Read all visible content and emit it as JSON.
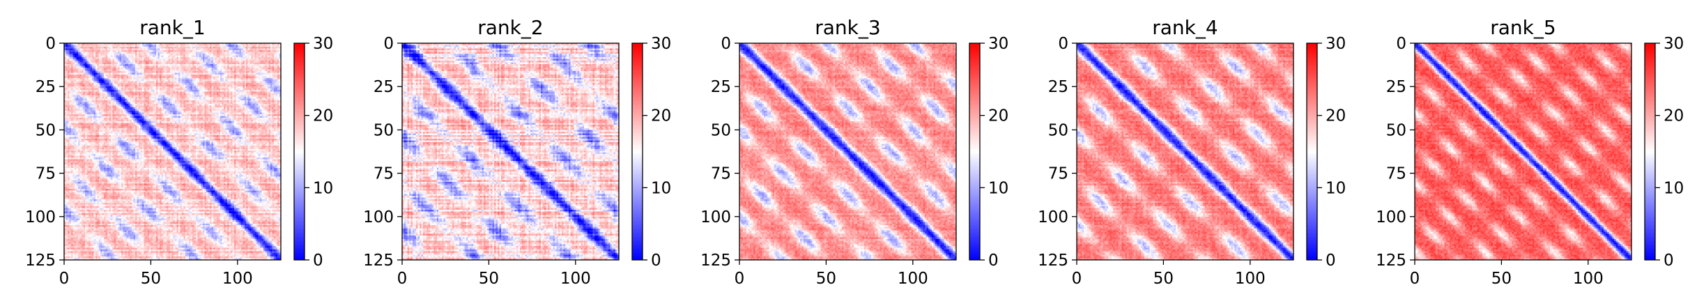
{
  "chart_data": [
    {
      "type": "heatmap",
      "title": "rank_1",
      "xlim": [
        0,
        125
      ],
      "ylim": [
        125,
        0
      ],
      "xticks": [
        0,
        50,
        100
      ],
      "yticks": [
        0,
        25,
        50,
        75,
        100,
        125
      ],
      "colorbar": {
        "range": [
          0,
          30
        ],
        "ticks": [
          0,
          10,
          20,
          30
        ],
        "colormap": "bwr",
        "colors": [
          "#0000ff",
          "#ffffff",
          "#ff0000"
        ]
      },
      "pattern": {
        "period": 24,
        "diag_width": 3.5,
        "base": 19,
        "blue_depth": 10,
        "stripe": 0.6
      }
    },
    {
      "type": "heatmap",
      "title": "rank_2",
      "xlim": [
        0,
        125
      ],
      "ylim": [
        125,
        0
      ],
      "xticks": [
        0,
        50,
        100
      ],
      "yticks": [
        0,
        25,
        50,
        75,
        100,
        125
      ],
      "colorbar": {
        "range": [
          0,
          30
        ],
        "ticks": [
          0,
          10,
          20,
          30
        ],
        "colormap": "bwr",
        "colors": [
          "#0000ff",
          "#ffffff",
          "#ff0000"
        ]
      },
      "pattern": {
        "period": 27,
        "diag_width": 4.0,
        "base": 18,
        "blue_depth": 11,
        "stripe": 1.0
      }
    },
    {
      "type": "heatmap",
      "title": "rank_3",
      "xlim": [
        0,
        125
      ],
      "ylim": [
        125,
        0
      ],
      "xticks": [
        0,
        50,
        100
      ],
      "yticks": [
        0,
        25,
        50,
        75,
        100,
        125
      ],
      "colorbar": {
        "range": [
          0,
          30
        ],
        "ticks": [
          0,
          10,
          20,
          30
        ],
        "colormap": "bwr",
        "colors": [
          "#0000ff",
          "#ffffff",
          "#ff0000"
        ]
      },
      "pattern": {
        "period": 25,
        "diag_width": 4.0,
        "base": 22,
        "blue_depth": 12,
        "stripe": 0.3
      }
    },
    {
      "type": "heatmap",
      "title": "rank_4",
      "xlim": [
        0,
        125
      ],
      "ylim": [
        125,
        0
      ],
      "xticks": [
        0,
        50,
        100
      ],
      "yticks": [
        0,
        25,
        50,
        75,
        100,
        125
      ],
      "colorbar": {
        "range": [
          0,
          30
        ],
        "ticks": [
          0,
          10,
          20,
          30
        ],
        "colormap": "bwr",
        "colors": [
          "#0000ff",
          "#ffffff",
          "#ff0000"
        ]
      },
      "pattern": {
        "period": 26,
        "diag_width": 4.0,
        "base": 23,
        "blue_depth": 12,
        "stripe": 0.3
      }
    },
    {
      "type": "heatmap",
      "title": "rank_5",
      "xlim": [
        0,
        125
      ],
      "ylim": [
        125,
        0
      ],
      "xticks": [
        0,
        50,
        100
      ],
      "yticks": [
        0,
        25,
        50,
        75,
        100,
        125
      ],
      "colorbar": {
        "range": [
          0,
          30
        ],
        "ticks": [
          0,
          10,
          20,
          30
        ],
        "colormap": "bwr",
        "colors": [
          "#0000ff",
          "#ffffff",
          "#ff0000"
        ]
      },
      "pattern": {
        "period": 20,
        "diag_width": 3.5,
        "base": 25,
        "blue_depth": 9,
        "stripe": 0.2
      }
    }
  ]
}
